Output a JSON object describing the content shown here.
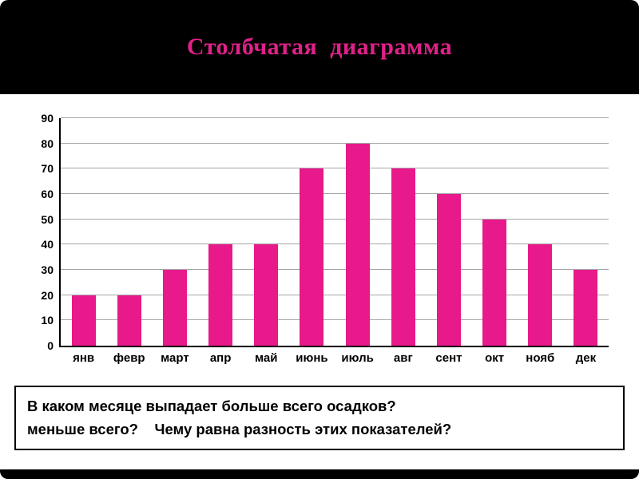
{
  "slide": {
    "title": "Столбчатая  диаграмма",
    "question_line1": "В каком месяце выпадает больше всего осадков?",
    "question_line2": "меньше всего?    Чему равна разность этих показателей?"
  },
  "colors": {
    "bar": "#e8198b",
    "title": "#e0218a",
    "header_bg": "#000000",
    "gridline": "#a6a6a6"
  },
  "chart_data": {
    "type": "bar",
    "categories": [
      "янв",
      "февр",
      "март",
      "апр",
      "май",
      "июнь",
      "июль",
      "авг",
      "сент",
      "окт",
      "нояб",
      "дек"
    ],
    "values": [
      20,
      20,
      30,
      40,
      40,
      70,
      80,
      70,
      60,
      50,
      40,
      30
    ],
    "title": "Столбчатая  диаграмма",
    "xlabel": "",
    "ylabel": "",
    "ylim": [
      0,
      90
    ],
    "ytick_step": 10,
    "grid": true,
    "legend": false
  }
}
